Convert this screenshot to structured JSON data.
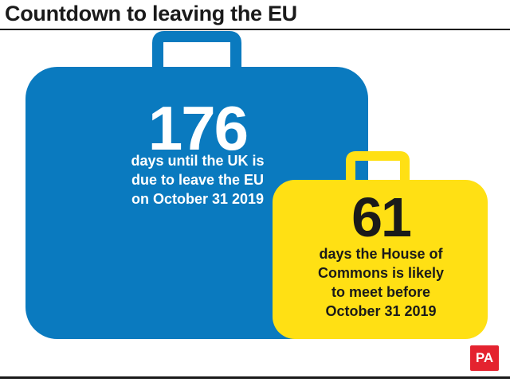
{
  "header": {
    "title": "Countdown to leaving the EU"
  },
  "blue_case": {
    "number": "176",
    "caption_lines": [
      "days until the UK is",
      "due to leave the EU",
      "on October 31 2019"
    ],
    "color": "#0a7abf"
  },
  "yellow_case": {
    "number": "61",
    "caption_lines": [
      "days the House of",
      "Commons is likely",
      "to meet before",
      "October 31 2019"
    ],
    "color": "#ffe014"
  },
  "logo": {
    "text": "PA",
    "color": "#e4232f"
  }
}
